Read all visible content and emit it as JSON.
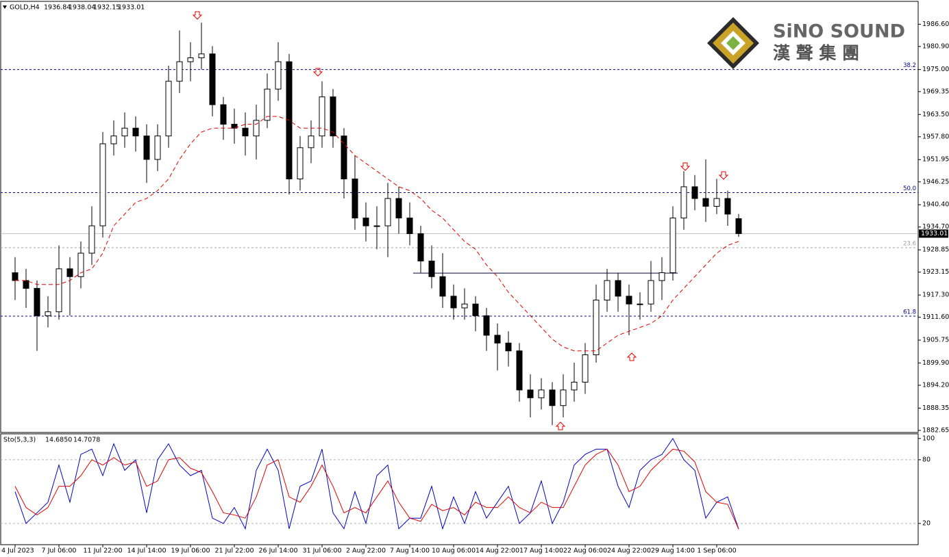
{
  "chart_data": [
    {
      "type": "candlestick",
      "title": "GOLD,H4",
      "categories": [
        "4 Jul 2023",
        null,
        null,
        null,
        "7 Jul 06:00",
        null,
        null,
        null,
        "11 Jul 22:00",
        null,
        null,
        null,
        "14 Jul 14:00",
        null,
        null,
        null,
        "19 Jul 06:00",
        null,
        null,
        null,
        "21 Jul 22:00",
        null,
        null,
        null,
        "26 Jul 14:00",
        null,
        null,
        null,
        "31 Jul 06:00",
        null,
        null,
        null,
        "2 Aug 22:00",
        null,
        null,
        null,
        "7 Aug 14:00",
        null,
        null,
        null,
        "10 Aug 06:00",
        null,
        null,
        null,
        "14 Aug 22:00",
        null,
        null,
        null,
        "17 Aug 14:00",
        null,
        null,
        null,
        "22 Aug 06:00",
        null,
        null,
        null,
        "24 Aug 22:00",
        null,
        null,
        null,
        "29 Aug 14:00",
        null,
        null,
        null,
        "1 Sep 06:00",
        null,
        null
      ],
      "open": [
        1923,
        1921,
        1919,
        1912,
        1913,
        1924,
        1922,
        1928,
        1935,
        1956,
        1958,
        1960,
        1958,
        1952,
        1958,
        1972,
        1977,
        1978,
        1979,
        1966,
        1961,
        1960,
        1958,
        1962,
        1970,
        1977,
        1947,
        1955,
        1958,
        1968,
        1958,
        1947,
        1937,
        1935,
        1935,
        1942,
        1937,
        1933,
        1926,
        1922,
        1917,
        1914,
        1915,
        1912,
        1907,
        1905,
        1903,
        1893,
        1891,
        1893,
        1889,
        1893,
        1895,
        1902,
        1916,
        1921,
        1917,
        1915,
        1915,
        1921,
        1923,
        1937,
        1945,
        1942,
        1940,
        1942,
        1936.84
      ],
      "high": [
        1927,
        1924,
        1921,
        1917,
        1930,
        1927,
        1931,
        1940,
        1959,
        1962,
        1964,
        1963,
        1961,
        1961,
        1976,
        1985,
        1982,
        1987,
        1981,
        1968,
        1965,
        1964,
        1966,
        1974,
        1982,
        1979,
        1958,
        1962,
        1972,
        1970,
        1960,
        1953,
        1941,
        1940,
        1946,
        1945,
        1941,
        1935,
        1930,
        1928,
        1920,
        1919,
        1917,
        1914,
        1910,
        1908,
        1905,
        1897,
        1896,
        1895,
        1897,
        1900,
        1905,
        1920,
        1924,
        1923,
        1920,
        1918,
        1926,
        1927,
        1940,
        1949,
        1948,
        1952,
        1947,
        1944,
        1938.04
      ],
      "low": [
        1916,
        1914,
        1903,
        1909,
        1911,
        1912,
        1919,
        1925,
        1932,
        1953,
        1955,
        1954,
        1946,
        1949,
        1955,
        1969,
        1972,
        1975,
        1963,
        1957,
        1956,
        1953,
        1952,
        1960,
        1967,
        1943,
        1944,
        1951,
        1955,
        1955,
        1942,
        1934,
        1931,
        1929,
        1927,
        1933,
        1930,
        1923,
        1919,
        1914,
        1911,
        1911,
        1908,
        1903,
        1898,
        1899,
        1890,
        1886,
        1888,
        1884,
        1886,
        1890,
        1892,
        1900,
        1913,
        1913,
        1907,
        1911,
        1913,
        1916,
        1921,
        1934,
        1939,
        1936,
        1938,
        1935,
        1932.15
      ],
      "close": [
        1921,
        1919,
        1912,
        1913,
        1924,
        1922,
        1928,
        1935,
        1956,
        1958,
        1960,
        1958,
        1952,
        1958,
        1972,
        1977,
        1978,
        1979,
        1966,
        1961,
        1960,
        1958,
        1962,
        1970,
        1977,
        1947,
        1955,
        1958,
        1968,
        1958,
        1947,
        1937,
        1935,
        1935,
        1942,
        1937,
        1933,
        1926,
        1922,
        1917,
        1914,
        1915,
        1912,
        1907,
        1905,
        1903,
        1893,
        1891,
        1893,
        1889,
        1893,
        1895,
        1902,
        1916,
        1921,
        1917,
        1915,
        1915,
        1921,
        1923,
        1937,
        1945,
        1942,
        1940,
        1942,
        1938,
        1933.01
      ],
      "ma": {
        "color": "#e00000",
        "values": [
          1921,
          1921,
          1920,
          1920,
          1920,
          1921,
          1923,
          1924,
          1928,
          1935,
          1938,
          1941,
          1942,
          1944,
          1947,
          1952,
          1956,
          1959,
          1960,
          1960,
          1960,
          1961,
          1961,
          1963,
          1963,
          1962,
          1960,
          1960,
          1960,
          1959,
          1956,
          1953,
          1951,
          1949,
          1947,
          1945,
          1944,
          1942,
          1939,
          1937,
          1934,
          1931,
          1929,
          1925,
          1922,
          1918,
          1915,
          1912,
          1909,
          1906,
          1904,
          1903,
          1903,
          1903,
          1905,
          1907,
          1908,
          1909,
          1910,
          1912,
          1916,
          1919,
          1922,
          1925,
          1928,
          1930,
          1931
        ]
      },
      "levels": [
        {
          "label": "38.2",
          "value": 1975.0,
          "color": "#00008b"
        },
        {
          "label": "50.0",
          "value": 1943.5,
          "color": "#00008b"
        },
        {
          "label": "61.8",
          "value": 1911.9,
          "color": "#00008b"
        },
        {
          "label": "23.6",
          "value": 1929.4,
          "color": "#a0a0a0"
        }
      ],
      "neckline": 1922.9,
      "ylim": [
        1882.12,
        1992.27
      ],
      "yticks": [
        {
          "value": 1986.6,
          "label": "1986.60"
        },
        {
          "value": 1980.9,
          "label": "1980.90"
        },
        {
          "value": 1975.0,
          "label": "1975.00"
        },
        {
          "value": 1969.35,
          "label": "1969.35"
        },
        {
          "value": 1963.5,
          "label": "1963.50"
        },
        {
          "value": 1957.8,
          "label": "1957.80"
        },
        1951.95,
        {
          "value": 1946.25,
          "label": "1946.25"
        },
        {
          "value": 1940.4,
          "label": "1940.40"
        },
        {
          "value": 1934.7,
          "label": "1934.70"
        },
        1928.85,
        1923.15,
        {
          "value": 1917.3,
          "label": "1917.30"
        },
        {
          "value": 1911.6,
          "label": "1911.60"
        },
        1905.75,
        {
          "value": 1899.9,
          "label": "1899.90"
        },
        {
          "value": 1894.2,
          "label": "1894.20"
        },
        1888.35,
        1882.65
      ],
      "watermark": {
        "brand": "SiNO SOUND",
        "chinese": "漢 聲 集 團"
      }
    },
    {
      "type": "line",
      "title": "Sto(5,3,3)",
      "readout": [
        {
          "value": 14.685,
          "label": "14.6850"
        },
        14.7078
      ],
      "series": [
        {
          "color": "#0000cd",
          "values": [
            50,
            20,
            30,
            40,
            75,
            40,
            85,
            90,
            65,
            95,
            70,
            80,
            30,
            80,
            95,
            75,
            65,
            70,
            25,
            20,
            35,
            15,
            70,
            90,
            70,
            15,
            55,
            60,
            90,
            30,
            15,
            50,
            20,
            65,
            75,
            15,
            25,
            25,
            55,
            15,
            45,
            20,
            50,
            25,
            40,
            55,
            20,
            30,
            60,
            20,
            40,
            75,
            85,
            90,
            90,
            55,
            35,
            70,
            80,
            85,
            100,
            80,
            70,
            25,
            40,
            45,
            14.685
          ]
        },
        {
          "color": "#e00000",
          "values": [
            55,
            35,
            28,
            35,
            55,
            55,
            65,
            80,
            75,
            82,
            75,
            78,
            55,
            60,
            80,
            82,
            72,
            68,
            50,
            30,
            28,
            25,
            45,
            75,
            80,
            45,
            40,
            55,
            75,
            55,
            30,
            35,
            30,
            45,
            60,
            40,
            25,
            22,
            38,
            32,
            35,
            28,
            40,
            35,
            35,
            45,
            35,
            30,
            40,
            35,
            35,
            55,
            75,
            85,
            90,
            75,
            50,
            55,
            70,
            80,
            90,
            88,
            78,
            50,
            40,
            38,
            14.7078
          ]
        }
      ],
      "ylim": [
        0,
        103.75
      ],
      "yticks": [
        100,
        80,
        20
      ],
      "dashed": [
        80,
        20
      ]
    }
  ]
}
